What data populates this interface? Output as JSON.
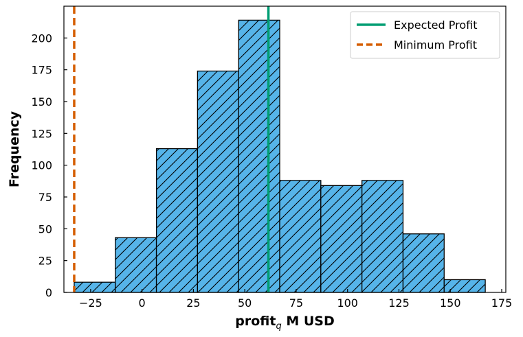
{
  "chart_data": {
    "type": "bar",
    "title": "",
    "xlabel_main": "profit",
    "xlabel_sub": "q",
    "xlabel_rest": " M USD",
    "ylabel": "Frequency",
    "xlim": [
      -38,
      177
    ],
    "ylim": [
      0,
      225
    ],
    "xticks": [
      -25,
      0,
      25,
      50,
      75,
      100,
      125,
      150,
      175
    ],
    "yticks": [
      0,
      25,
      50,
      75,
      100,
      125,
      150,
      175,
      200
    ],
    "grid": false,
    "legend_position": "top-right",
    "bins": [
      {
        "x0": -33,
        "x1": -13,
        "count": 8
      },
      {
        "x0": -13,
        "x1": 7,
        "count": 43
      },
      {
        "x0": 7,
        "x1": 27,
        "count": 113
      },
      {
        "x0": 27,
        "x1": 47,
        "count": 174
      },
      {
        "x0": 47,
        "x1": 67,
        "count": 214
      },
      {
        "x0": 67,
        "x1": 87,
        "count": 88
      },
      {
        "x0": 87,
        "x1": 107,
        "count": 84
      },
      {
        "x0": 107,
        "x1": 127,
        "count": 88
      },
      {
        "x0": 127,
        "x1": 147,
        "count": 46
      },
      {
        "x0": 147,
        "x1": 167,
        "count": 10
      }
    ],
    "bar_color": "#56b4e9",
    "reference_lines": [
      {
        "name": "Expected Profit",
        "x": 61.5,
        "color": "#009e73",
        "style": "solid"
      },
      {
        "name": "Minimum Profit",
        "x": -33,
        "color": "#d55e00",
        "style": "dashed"
      }
    ]
  }
}
